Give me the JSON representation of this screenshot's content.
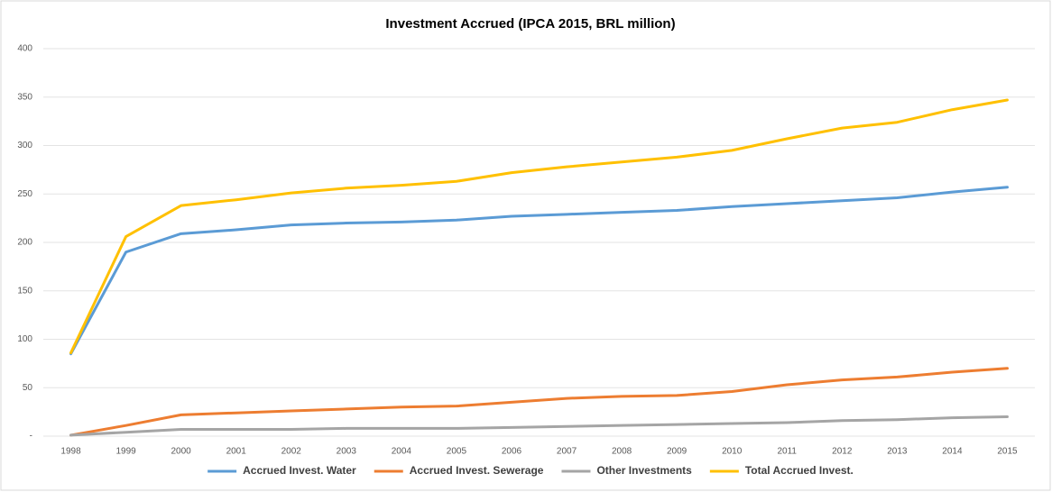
{
  "chart_data": {
    "type": "line",
    "title": "Investment Accrued (IPCA 2015, BRL million)",
    "categories": [
      "1998",
      "1999",
      "2000",
      "2001",
      "2002",
      "2003",
      "2004",
      "2005",
      "2006",
      "2007",
      "2008",
      "2009",
      "2010",
      "2011",
      "2012",
      "2013",
      "2014",
      "2015"
    ],
    "series": [
      {
        "name": "Accrued Invest. Water",
        "color": "#5b9bd5",
        "values": [
          85,
          190,
          209,
          213,
          218,
          220,
          221,
          223,
          227,
          229,
          231,
          233,
          237,
          240,
          243,
          246,
          252,
          257
        ]
      },
      {
        "name": "Accrued Invest. Sewerage",
        "color": "#ed7d31",
        "values": [
          1,
          11,
          22,
          24,
          26,
          28,
          30,
          31,
          35,
          39,
          41,
          42,
          46,
          53,
          58,
          61,
          66,
          70
        ]
      },
      {
        "name": "Other Investments",
        "color": "#a5a5a5",
        "values": [
          1,
          4,
          7,
          7,
          7,
          8,
          8,
          8,
          9,
          10,
          11,
          12,
          13,
          14,
          16,
          17,
          19,
          20
        ]
      },
      {
        "name": "Total Accrued Invest.",
        "color": "#ffc000",
        "values": [
          86,
          206,
          238,
          244,
          251,
          256,
          259,
          263,
          272,
          278,
          283,
          288,
          295,
          307,
          318,
          324,
          337,
          347
        ]
      }
    ],
    "ylim": [
      0,
      400
    ],
    "yticks": [
      {
        "value": 0,
        "label": "-"
      },
      50,
      100,
      150,
      200,
      250,
      300,
      350,
      400
    ],
    "grid": true,
    "legend": "bottom"
  }
}
